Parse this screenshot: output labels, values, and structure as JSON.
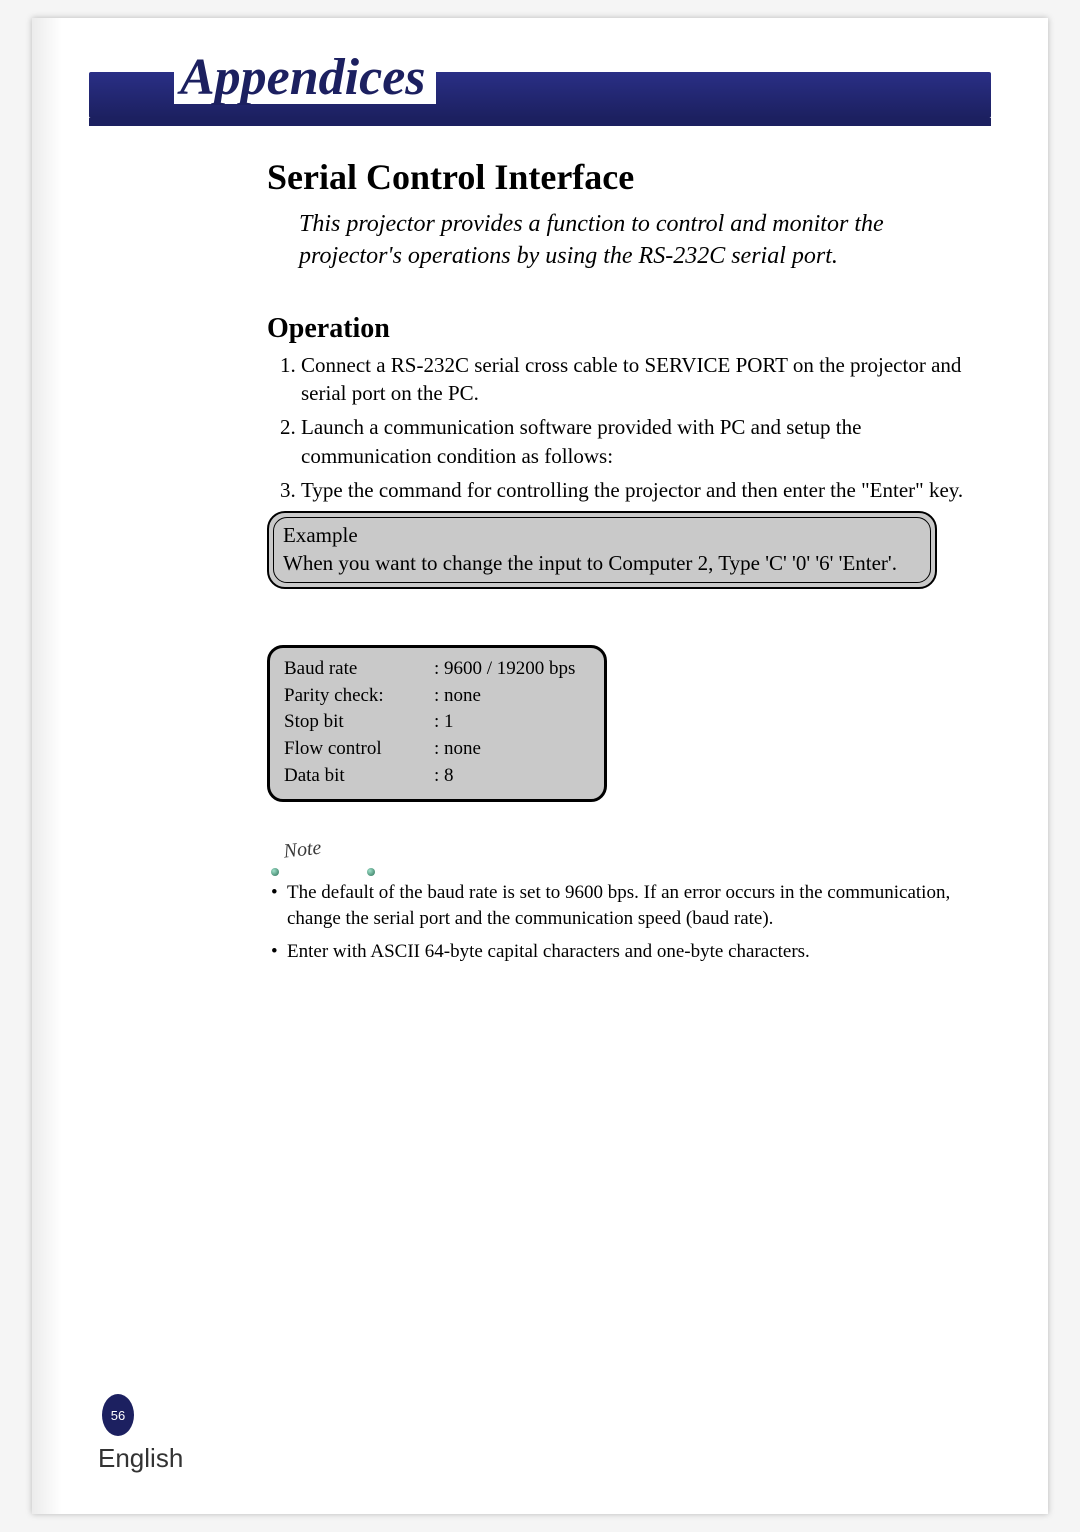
{
  "banner": {
    "title": "Appendices"
  },
  "section": {
    "title": "Serial Control Interface",
    "intro": "This projector provides a function to control and monitor the projector's operations by using the RS-232C serial port."
  },
  "operation": {
    "heading": "Operation",
    "steps": [
      "Connect a RS-232C serial cross cable to SERVICE PORT on the projector and serial port on the PC.",
      "Launch a communication software provided with PC and setup the communication condition as follows:",
      "Type the command for controlling the projector and then enter the \"Enter\" key."
    ]
  },
  "example": {
    "title": "Example",
    "body": "When you want to change the input to Computer 2, Type 'C' '0' '6' 'Enter'."
  },
  "settings": {
    "rows": [
      {
        "k": "Baud rate",
        "v": "9600 / 19200 bps"
      },
      {
        "k": "Parity check:",
        "v": "none"
      },
      {
        "k": "Stop bit",
        "v": "1"
      },
      {
        "k": "Flow control",
        "v": "none"
      },
      {
        "k": "Data bit",
        "v": "8"
      }
    ]
  },
  "note": {
    "label": "Note",
    "items": [
      "The default of the baud rate is set to 9600 bps. If an error occurs in the communication, change the serial port and the communication speed (baud rate).",
      "Enter with ASCII 64-byte capital characters and one-byte characters."
    ]
  },
  "footer": {
    "page_number": "56",
    "language": "English"
  },
  "colors": {
    "banner_gradient_top": "#2a2f86",
    "banner_gradient_bottom": "#1c2060",
    "box_fill": "#c9c9c9",
    "page_bg": "#ffffff",
    "outer_bg": "#f5f5f5"
  }
}
